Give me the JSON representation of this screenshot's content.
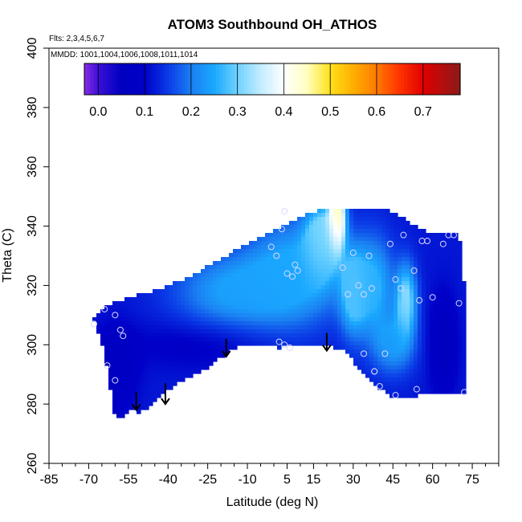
{
  "chart_data": {
    "type": "heatmap",
    "title": "ATOM3 Southbound OH_ATHOS",
    "flights_label": "Flts: 2,3,4,5,6,7",
    "mmdd_label": "MMDD: 1001,1004,1006,1008,1011,1014",
    "xlabel": "Latitude (deg N)",
    "ylabel": "Theta (C)",
    "xlim": [
      -85,
      85
    ],
    "ylim": [
      260,
      400
    ],
    "x_ticks": [
      -85,
      -70,
      -55,
      -40,
      -25,
      -10,
      5,
      15,
      30,
      45,
      60,
      75
    ],
    "y_ticks": [
      260,
      280,
      300,
      320,
      340,
      360,
      380,
      400
    ],
    "colorbar": {
      "min": -0.03,
      "max": 0.78,
      "ticks": [
        "0.0",
        "0.1",
        "0.2",
        "0.3",
        "0.4",
        "0.5",
        "0.6",
        "0.7"
      ],
      "tick_values": [
        0.0,
        0.1,
        0.2,
        0.3,
        0.4,
        0.5,
        0.6,
        0.7
      ],
      "stops": [
        {
          "v": -0.03,
          "c": "#8a2be2"
        },
        {
          "v": 0.0,
          "c": "#3a10d8"
        },
        {
          "v": 0.05,
          "c": "#0000bf"
        },
        {
          "v": 0.1,
          "c": "#0000c8"
        },
        {
          "v": 0.15,
          "c": "#0a3ae6"
        },
        {
          "v": 0.2,
          "c": "#1b7ff2"
        },
        {
          "v": 0.25,
          "c": "#1aa8ff"
        },
        {
          "v": 0.3,
          "c": "#6fd2ff"
        },
        {
          "v": 0.35,
          "c": "#c3ecff"
        },
        {
          "v": 0.4,
          "c": "#ffffff"
        },
        {
          "v": 0.45,
          "c": "#ffffc0"
        },
        {
          "v": 0.5,
          "c": "#ffe11a"
        },
        {
          "v": 0.55,
          "c": "#ffae00"
        },
        {
          "v": 0.6,
          "c": "#ff7a00"
        },
        {
          "v": 0.65,
          "c": "#ff3200"
        },
        {
          "v": 0.7,
          "c": "#e00000"
        },
        {
          "v": 0.78,
          "c": "#8b1a1a"
        }
      ]
    },
    "domain_boundary": {
      "top": [
        [
          -68,
          309
        ],
        [
          -64,
          313
        ],
        [
          -55,
          316
        ],
        [
          -46,
          318
        ],
        [
          -37,
          321
        ],
        [
          -28,
          325
        ],
        [
          -18,
          330
        ],
        [
          -8,
          335
        ],
        [
          1,
          339
        ],
        [
          10,
          343
        ],
        [
          18,
          346
        ],
        [
          35,
          346
        ],
        [
          45,
          345
        ],
        [
          55,
          339
        ],
        [
          60,
          338
        ],
        [
          70,
          337
        ],
        [
          71,
          330
        ],
        [
          72,
          319
        ],
        [
          72,
          283
        ]
      ],
      "bottom": [
        [
          72,
          283
        ],
        [
          55,
          283
        ],
        [
          46,
          282
        ],
        [
          40,
          285
        ],
        [
          33,
          291
        ],
        [
          27,
          298
        ],
        [
          18,
          300
        ],
        [
          9,
          300
        ],
        [
          2,
          299
        ],
        [
          -4,
          300
        ],
        [
          -12,
          300
        ],
        [
          -18,
          297
        ],
        [
          -27,
          291
        ],
        [
          -35,
          288
        ],
        [
          -41,
          284
        ],
        [
          -47,
          279
        ],
        [
          -51,
          277
        ],
        [
          -54,
          278
        ],
        [
          -57,
          276
        ],
        [
          -59,
          275
        ],
        [
          -60,
          276
        ],
        [
          -61,
          280
        ],
        [
          -62,
          287
        ],
        [
          -64,
          297
        ],
        [
          -68,
          309
        ]
      ]
    },
    "background_value": 0.12,
    "field_features": [
      {
        "x": 24,
        "y": 343,
        "sx": 3,
        "sy": 10,
        "v": 0.49
      },
      {
        "x": 18,
        "y": 335,
        "sx": 6,
        "sy": 12,
        "v": 0.33
      },
      {
        "x": 30,
        "y": 318,
        "sx": 5,
        "sy": 14,
        "v": 0.29
      },
      {
        "x": 50,
        "y": 315,
        "sx": 4,
        "sy": 12,
        "v": 0.32
      },
      {
        "x": 8,
        "y": 325,
        "sx": 18,
        "sy": 18,
        "v": 0.25
      },
      {
        "x": -15,
        "y": 318,
        "sx": 22,
        "sy": 12,
        "v": 0.24
      },
      {
        "x": 38,
        "y": 320,
        "sx": 7,
        "sy": 16,
        "v": 0.26
      },
      {
        "x": 45,
        "y": 300,
        "sx": 8,
        "sy": 10,
        "v": 0.23
      },
      {
        "x": 64,
        "y": 300,
        "sx": 5,
        "sy": 16,
        "v": 0.05
      },
      {
        "x": -60,
        "y": 292,
        "sx": 8,
        "sy": 14,
        "v": 0.06
      },
      {
        "x": -30,
        "y": 300,
        "sx": 25,
        "sy": 8,
        "v": 0.09
      }
    ],
    "points": [
      [
        -68,
        307
      ],
      [
        -64,
        312
      ],
      [
        -60,
        310
      ],
      [
        -58,
        305
      ],
      [
        -57,
        303
      ],
      [
        -63,
        293
      ],
      [
        -60,
        288
      ],
      [
        -1,
        333
      ],
      [
        1,
        330
      ],
      [
        5,
        324
      ],
      [
        7,
        323
      ],
      [
        8,
        327
      ],
      [
        9,
        325
      ],
      [
        3,
        339
      ],
      [
        4,
        345
      ],
      [
        2,
        301
      ],
      [
        4,
        300
      ],
      [
        6,
        299
      ],
      [
        26,
        326
      ],
      [
        28,
        317
      ],
      [
        30,
        331
      ],
      [
        32,
        320
      ],
      [
        34,
        317
      ],
      [
        36,
        330
      ],
      [
        37,
        319
      ],
      [
        38,
        291
      ],
      [
        40,
        286
      ],
      [
        42,
        297
      ],
      [
        44,
        334
      ],
      [
        46,
        322
      ],
      [
        48,
        319
      ],
      [
        49,
        337
      ],
      [
        53,
        325
      ],
      [
        55,
        315
      ],
      [
        56,
        335
      ],
      [
        58,
        335
      ],
      [
        60,
        316
      ],
      [
        64,
        334
      ],
      [
        66,
        337
      ],
      [
        68,
        337
      ],
      [
        70,
        314
      ],
      [
        72,
        284
      ],
      [
        54,
        285
      ],
      [
        46,
        283
      ],
      [
        34,
        297
      ],
      [
        38,
        291
      ]
    ],
    "arrows": [
      {
        "x": -52,
        "y_top": 284,
        "y_tip": 278
      },
      {
        "x": -41,
        "y_top": 287,
        "y_tip": 280
      },
      {
        "x": -18,
        "y_top": 302,
        "y_tip": 296
      },
      {
        "x": 20,
        "y_top": 304,
        "y_tip": 298
      }
    ]
  }
}
